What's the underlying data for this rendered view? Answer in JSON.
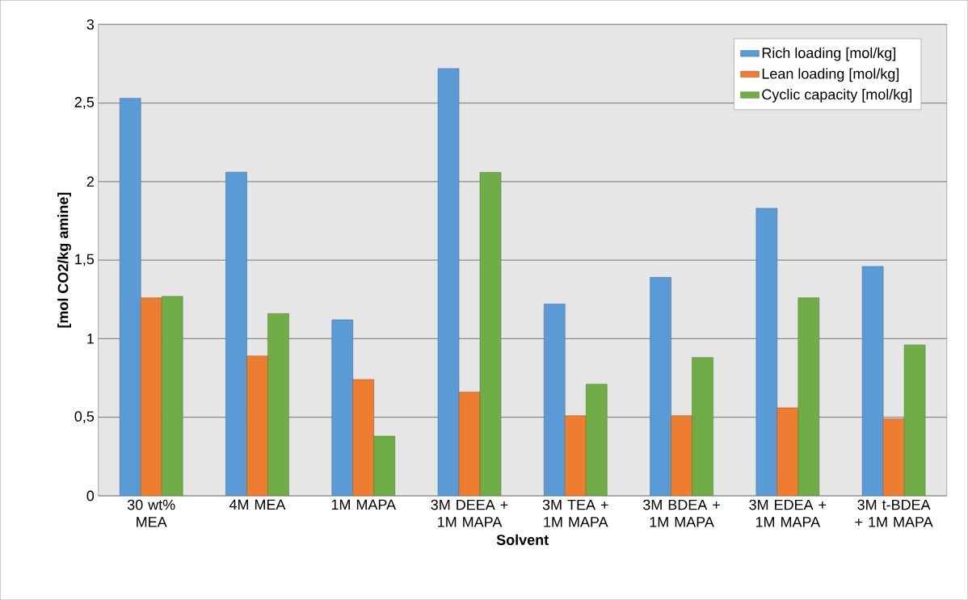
{
  "chart_data": {
    "type": "bar",
    "xlabel": "Solvent",
    "ylabel": "[mol CO2/kg amine]",
    "categories": [
      "30 wt% MEA",
      "4M MEA",
      "1M MAPA",
      "3M DEEA + 1M MAPA",
      "3M TEA + 1M MAPA",
      "3M BDEA + 1M MAPA",
      "3M EDEA + 1M MAPA",
      "3M t-BDEA + 1M MAPA"
    ],
    "series": [
      {
        "name": "Rich loading [mol/kg]",
        "color": "#5b9bd5",
        "values": [
          2.53,
          2.06,
          1.12,
          2.72,
          1.22,
          1.39,
          1.83,
          1.46
        ]
      },
      {
        "name": "Lean loading [mol/kg]",
        "color": "#ed7d31",
        "values": [
          1.26,
          0.89,
          0.74,
          0.66,
          0.51,
          0.51,
          0.56,
          0.49
        ]
      },
      {
        "name": "Cyclic capacity [mol/kg]",
        "color": "#70ad47",
        "values": [
          1.27,
          1.16,
          0.38,
          2.06,
          0.71,
          0.88,
          1.26,
          0.96
        ]
      }
    ],
    "ylim": [
      0,
      3
    ],
    "yticks": [
      0,
      {
        "value": 0.5,
        "label": "0,5"
      },
      1,
      {
        "value": 1.5,
        "label": "1,5"
      },
      2,
      {
        "value": 2.5,
        "label": "2,5"
      },
      3
    ],
    "grid": "y",
    "legend": "top right"
  }
}
